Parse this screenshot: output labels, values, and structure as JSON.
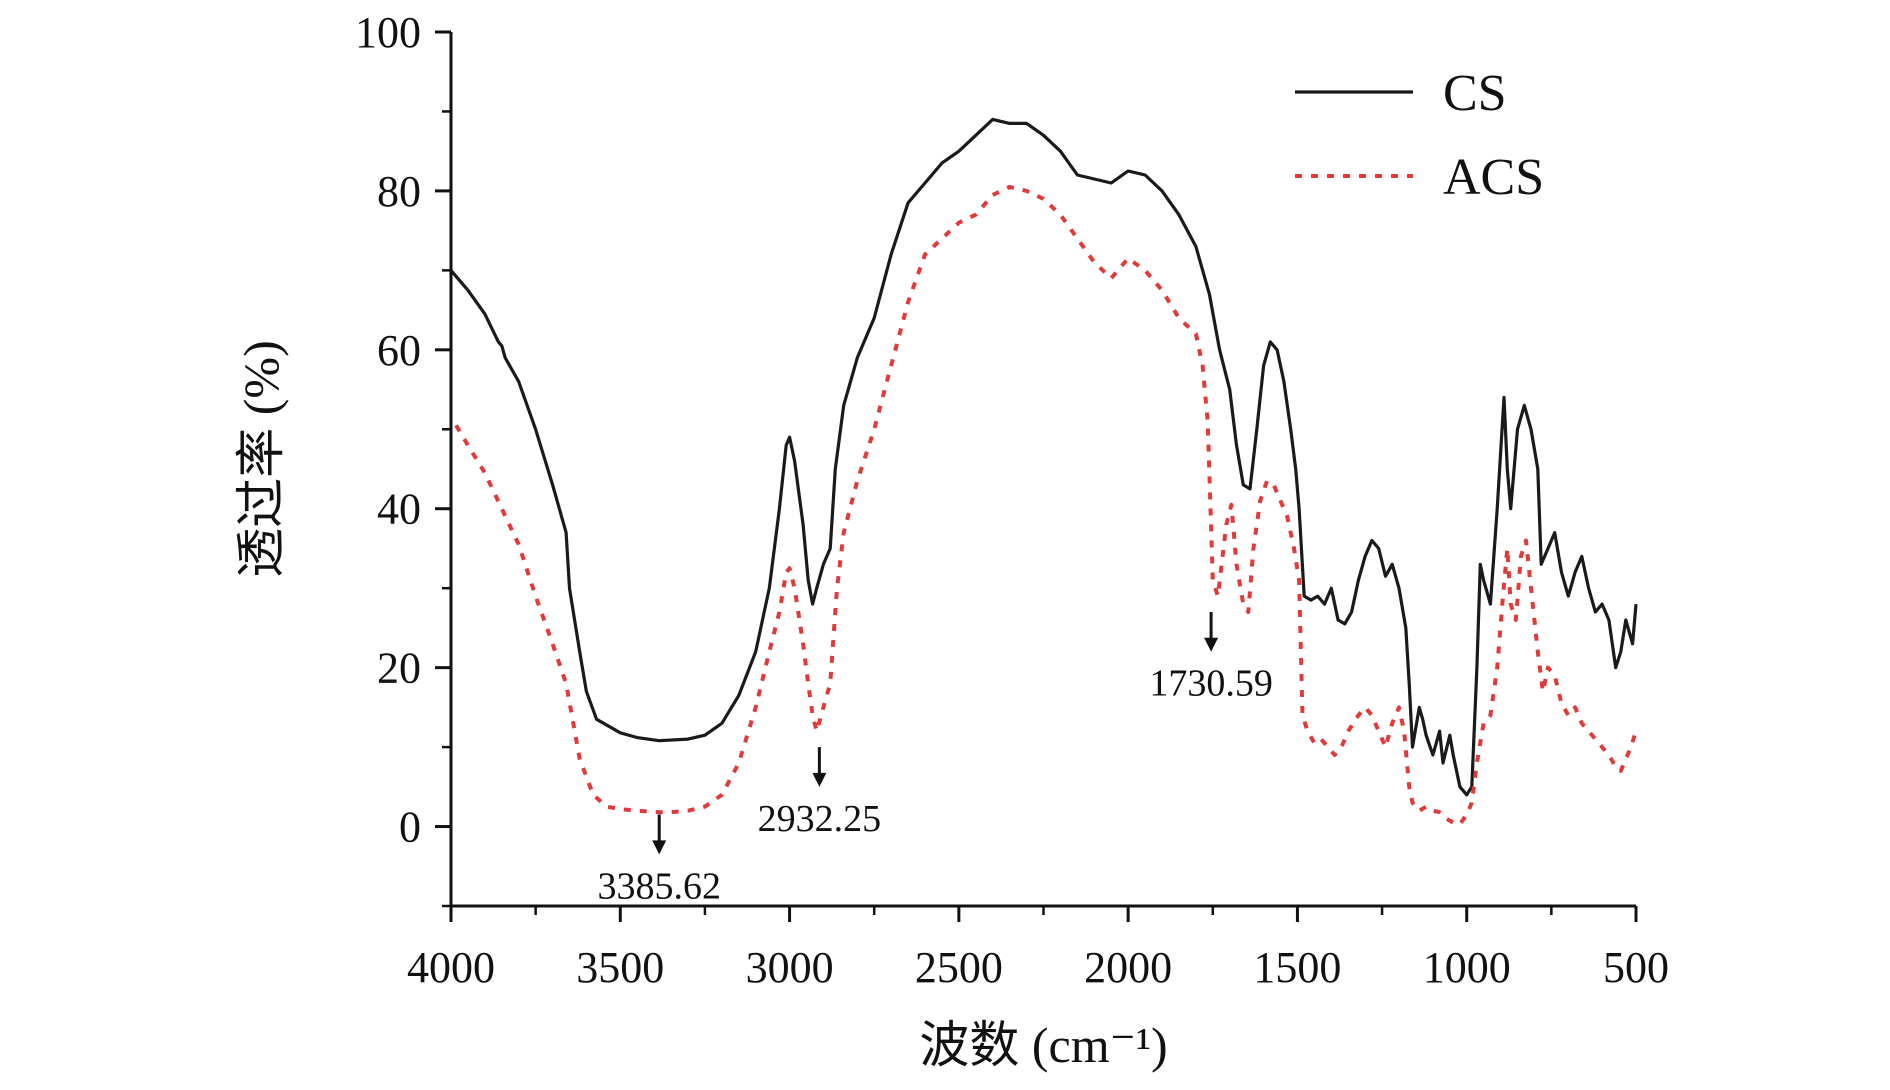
{
  "chart_data": {
    "type": "line",
    "xlabel": "波数 (cm⁻¹)",
    "ylabel": "透过率 (%)",
    "xlim": [
      4000,
      500
    ],
    "ylim": [
      -10,
      100
    ],
    "x_ticks": [
      4000,
      3500,
      3000,
      2500,
      2000,
      1500,
      1000,
      500
    ],
    "y_ticks": [
      0,
      20,
      40,
      60,
      80,
      100
    ],
    "grid": false,
    "legend_position": "top-right",
    "series": [
      {
        "name": "CS",
        "style": "solid",
        "color": "#1a1a1a",
        "points": [
          [
            4000,
            70
          ],
          [
            3950,
            67.5
          ],
          [
            3900,
            64.5
          ],
          [
            3860,
            61
          ],
          [
            3850,
            60.5
          ],
          [
            3840,
            59
          ],
          [
            3800,
            56
          ],
          [
            3750,
            50
          ],
          [
            3700,
            43
          ],
          [
            3660,
            37
          ],
          [
            3650,
            30
          ],
          [
            3620,
            22
          ],
          [
            3600,
            17
          ],
          [
            3570,
            13.5
          ],
          [
            3500,
            11.8
          ],
          [
            3450,
            11.2
          ],
          [
            3385,
            10.8
          ],
          [
            3300,
            11
          ],
          [
            3250,
            11.5
          ],
          [
            3200,
            13
          ],
          [
            3150,
            16.5
          ],
          [
            3100,
            22
          ],
          [
            3060,
            30
          ],
          [
            3030,
            40
          ],
          [
            3010,
            48
          ],
          [
            3000,
            49
          ],
          [
            2985,
            46
          ],
          [
            2960,
            38
          ],
          [
            2945,
            31
          ],
          [
            2932,
            28
          ],
          [
            2920,
            30
          ],
          [
            2900,
            33
          ],
          [
            2880,
            35
          ],
          [
            2865,
            45
          ],
          [
            2840,
            53
          ],
          [
            2800,
            59
          ],
          [
            2750,
            64
          ],
          [
            2700,
            72
          ],
          [
            2650,
            78.5
          ],
          [
            2600,
            81
          ],
          [
            2550,
            83.5
          ],
          [
            2500,
            85
          ],
          [
            2450,
            87
          ],
          [
            2400,
            89
          ],
          [
            2350,
            88.5
          ],
          [
            2300,
            88.5
          ],
          [
            2250,
            87
          ],
          [
            2200,
            85
          ],
          [
            2150,
            82
          ],
          [
            2100,
            81.5
          ],
          [
            2050,
            81
          ],
          [
            2000,
            82.5
          ],
          [
            1950,
            82
          ],
          [
            1900,
            80
          ],
          [
            1850,
            77
          ],
          [
            1800,
            73
          ],
          [
            1760,
            67
          ],
          [
            1730,
            60
          ],
          [
            1700,
            55
          ],
          [
            1680,
            48
          ],
          [
            1660,
            43
          ],
          [
            1640,
            42.5
          ],
          [
            1620,
            50
          ],
          [
            1600,
            58
          ],
          [
            1580,
            61
          ],
          [
            1560,
            60
          ],
          [
            1540,
            56
          ],
          [
            1520,
            50
          ],
          [
            1505,
            45
          ],
          [
            1495,
            40
          ],
          [
            1480,
            29
          ],
          [
            1460,
            28.5
          ],
          [
            1440,
            29
          ],
          [
            1420,
            28
          ],
          [
            1400,
            30
          ],
          [
            1380,
            26
          ],
          [
            1360,
            25.5
          ],
          [
            1340,
            27
          ],
          [
            1320,
            31
          ],
          [
            1300,
            34
          ],
          [
            1280,
            36
          ],
          [
            1260,
            35
          ],
          [
            1240,
            31.5
          ],
          [
            1220,
            33
          ],
          [
            1200,
            30
          ],
          [
            1180,
            25
          ],
          [
            1170,
            18
          ],
          [
            1160,
            10
          ],
          [
            1140,
            15
          ],
          [
            1130,
            13.5
          ],
          [
            1120,
            11.5
          ],
          [
            1100,
            9
          ],
          [
            1080,
            12
          ],
          [
            1070,
            8
          ],
          [
            1050,
            11.5
          ],
          [
            1040,
            9
          ],
          [
            1020,
            5
          ],
          [
            1000,
            4
          ],
          [
            985,
            5
          ],
          [
            970,
            20
          ],
          [
            960,
            33
          ],
          [
            950,
            31
          ],
          [
            930,
            28
          ],
          [
            910,
            40
          ],
          [
            890,
            54
          ],
          [
            880,
            45
          ],
          [
            870,
            40
          ],
          [
            850,
            50
          ],
          [
            830,
            53
          ],
          [
            810,
            50
          ],
          [
            790,
            45
          ],
          [
            780,
            33
          ],
          [
            760,
            35
          ],
          [
            740,
            37
          ],
          [
            720,
            32
          ],
          [
            700,
            29
          ],
          [
            680,
            32
          ],
          [
            660,
            34
          ],
          [
            640,
            30
          ],
          [
            620,
            27
          ],
          [
            600,
            28
          ],
          [
            580,
            26
          ],
          [
            560,
            20
          ],
          [
            545,
            22
          ],
          [
            530,
            26
          ],
          [
            510,
            23
          ],
          [
            500,
            28
          ]
        ]
      },
      {
        "name": "ACS",
        "style": "dotted",
        "color": "#e03a3a",
        "points": [
          [
            3985,
            50.5
          ],
          [
            3950,
            48
          ],
          [
            3900,
            44.5
          ],
          [
            3850,
            40
          ],
          [
            3800,
            35.5
          ],
          [
            3750,
            29
          ],
          [
            3700,
            23
          ],
          [
            3660,
            18
          ],
          [
            3620,
            8.5
          ],
          [
            3580,
            4
          ],
          [
            3540,
            2.5
          ],
          [
            3500,
            2.2
          ],
          [
            3450,
            2
          ],
          [
            3385,
            1.8
          ],
          [
            3350,
            1.8
          ],
          [
            3300,
            2
          ],
          [
            3250,
            2.5
          ],
          [
            3200,
            4
          ],
          [
            3150,
            8
          ],
          [
            3100,
            15
          ],
          [
            3060,
            22
          ],
          [
            3030,
            27
          ],
          [
            3010,
            32
          ],
          [
            3000,
            32.5
          ],
          [
            2985,
            30
          ],
          [
            2960,
            23
          ],
          [
            2945,
            18
          ],
          [
            2932,
            14
          ],
          [
            2920,
            12
          ],
          [
            2900,
            15
          ],
          [
            2880,
            18
          ],
          [
            2860,
            30
          ],
          [
            2840,
            37
          ],
          [
            2800,
            43.5
          ],
          [
            2750,
            50
          ],
          [
            2700,
            58
          ],
          [
            2650,
            66
          ],
          [
            2600,
            72
          ],
          [
            2550,
            74
          ],
          [
            2500,
            76
          ],
          [
            2450,
            77
          ],
          [
            2400,
            79.5
          ],
          [
            2350,
            80.5
          ],
          [
            2300,
            80
          ],
          [
            2250,
            79
          ],
          [
            2200,
            77
          ],
          [
            2150,
            74
          ],
          [
            2100,
            71
          ],
          [
            2050,
            69
          ],
          [
            2000,
            71.5
          ],
          [
            1950,
            70
          ],
          [
            1900,
            67.5
          ],
          [
            1850,
            64
          ],
          [
            1800,
            62
          ],
          [
            1780,
            58
          ],
          [
            1765,
            51
          ],
          [
            1750,
            31
          ],
          [
            1735,
            29
          ],
          [
            1710,
            38
          ],
          [
            1695,
            40.5
          ],
          [
            1680,
            33
          ],
          [
            1660,
            28
          ],
          [
            1645,
            27
          ],
          [
            1630,
            35
          ],
          [
            1610,
            41
          ],
          [
            1590,
            43.5
          ],
          [
            1570,
            43
          ],
          [
            1550,
            41
          ],
          [
            1530,
            39
          ],
          [
            1510,
            35
          ],
          [
            1495,
            31
          ],
          [
            1485,
            14
          ],
          [
            1470,
            12
          ],
          [
            1450,
            10.5
          ],
          [
            1430,
            11
          ],
          [
            1410,
            10
          ],
          [
            1390,
            9
          ],
          [
            1370,
            10
          ],
          [
            1350,
            12
          ],
          [
            1320,
            14
          ],
          [
            1300,
            15
          ],
          [
            1280,
            14
          ],
          [
            1260,
            12
          ],
          [
            1240,
            10
          ],
          [
            1220,
            13
          ],
          [
            1200,
            15
          ],
          [
            1185,
            12
          ],
          [
            1170,
            5
          ],
          [
            1160,
            3
          ],
          [
            1140,
            2
          ],
          [
            1120,
            2.5
          ],
          [
            1100,
            2
          ],
          [
            1080,
            1.8
          ],
          [
            1060,
            1
          ],
          [
            1040,
            0.5
          ],
          [
            1020,
            0.3
          ],
          [
            1000,
            1.5
          ],
          [
            985,
            3
          ],
          [
            970,
            8
          ],
          [
            950,
            13
          ],
          [
            930,
            14
          ],
          [
            910,
            20
          ],
          [
            895,
            28
          ],
          [
            880,
            35
          ],
          [
            870,
            28
          ],
          [
            855,
            26
          ],
          [
            840,
            34
          ],
          [
            825,
            36
          ],
          [
            810,
            30
          ],
          [
            790,
            22
          ],
          [
            775,
            17
          ],
          [
            760,
            20
          ],
          [
            740,
            19
          ],
          [
            720,
            15.5
          ],
          [
            700,
            14
          ],
          [
            680,
            15
          ],
          [
            660,
            13
          ],
          [
            640,
            12
          ],
          [
            620,
            11
          ],
          [
            600,
            10
          ],
          [
            580,
            9
          ],
          [
            560,
            7.5
          ],
          [
            545,
            7
          ],
          [
            530,
            8.5
          ],
          [
            515,
            10
          ],
          [
            500,
            12
          ]
        ]
      }
    ],
    "annotations": [
      {
        "label": "3385.62",
        "x": 3385,
        "y_arrow_top": 1.5,
        "y_arrow_tip": -3.5,
        "label_below": true
      },
      {
        "label": "2932.25",
        "x": 2912,
        "y_arrow_top": 10,
        "y_arrow_tip": 5,
        "label_below": true
      },
      {
        "label": "1730.59",
        "x": 1755,
        "y_arrow_top": 27,
        "y_arrow_tip": 22,
        "label_below": true
      }
    ]
  }
}
